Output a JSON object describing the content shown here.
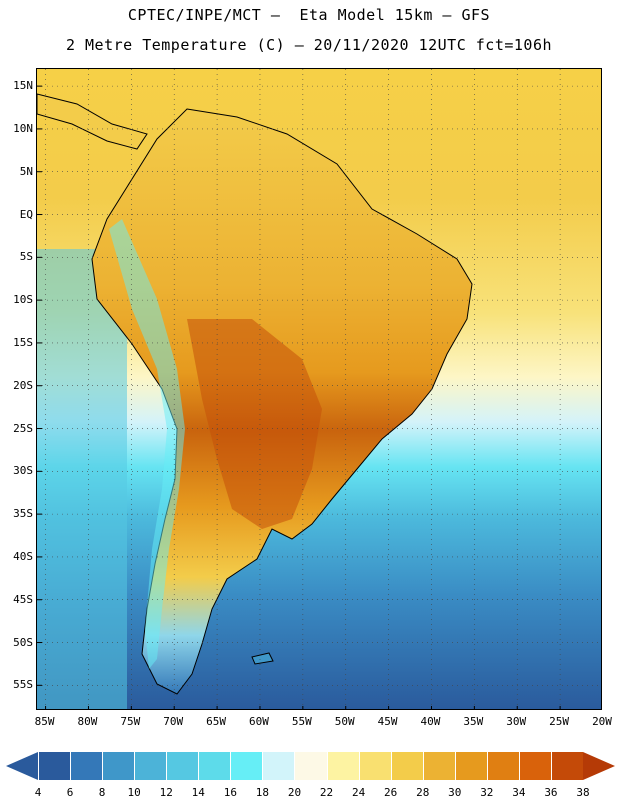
{
  "title": {
    "line1": "CPTEC/INPE/MCT –  Eta Model 15km – GFS",
    "line2": "2 Metre Temperature (C) – 20/11/2020 12UTC fct=106h"
  },
  "map": {
    "region": "South America",
    "lat_labels": [
      "15N",
      "10N",
      "5N",
      "EQ",
      "5S",
      "10S",
      "15S",
      "20S",
      "25S",
      "30S",
      "35S",
      "40S",
      "45S",
      "50S",
      "55S"
    ],
    "lat_values": [
      15,
      10,
      5,
      0,
      -5,
      -10,
      -15,
      -20,
      -25,
      -30,
      -35,
      -40,
      -45,
      -50,
      -55
    ],
    "lon_labels": [
      "85W",
      "80W",
      "75W",
      "70W",
      "65W",
      "60W",
      "55W",
      "50W",
      "45W",
      "40W",
      "35W",
      "30W",
      "25W",
      "20W"
    ],
    "lon_values": [
      -85,
      -80,
      -75,
      -70,
      -65,
      -60,
      -55,
      -50,
      -45,
      -40,
      -35,
      -30,
      -25,
      -20
    ],
    "lat_range": [
      -58,
      17
    ],
    "lon_range": [
      -86,
      -20
    ]
  },
  "colorbar": {
    "labels": [
      "4",
      "6",
      "8",
      "10",
      "12",
      "14",
      "16",
      "18",
      "20",
      "22",
      "24",
      "26",
      "28",
      "30",
      "32",
      "34",
      "36",
      "38"
    ],
    "colors": [
      "#2a5a9c",
      "#3478b8",
      "#3f97c9",
      "#4cb3d8",
      "#55c8e2",
      "#5ddbea",
      "#66eef6",
      "#d2f4fa",
      "#fdf9e6",
      "#fdf3a2",
      "#f9e070",
      "#f3cc4a",
      "#ecb233",
      "#e69a1e",
      "#e07f12",
      "#d9620b",
      "#c44a08"
    ],
    "under_color": "#2a5a9c",
    "over_color": "#b53a06"
  }
}
